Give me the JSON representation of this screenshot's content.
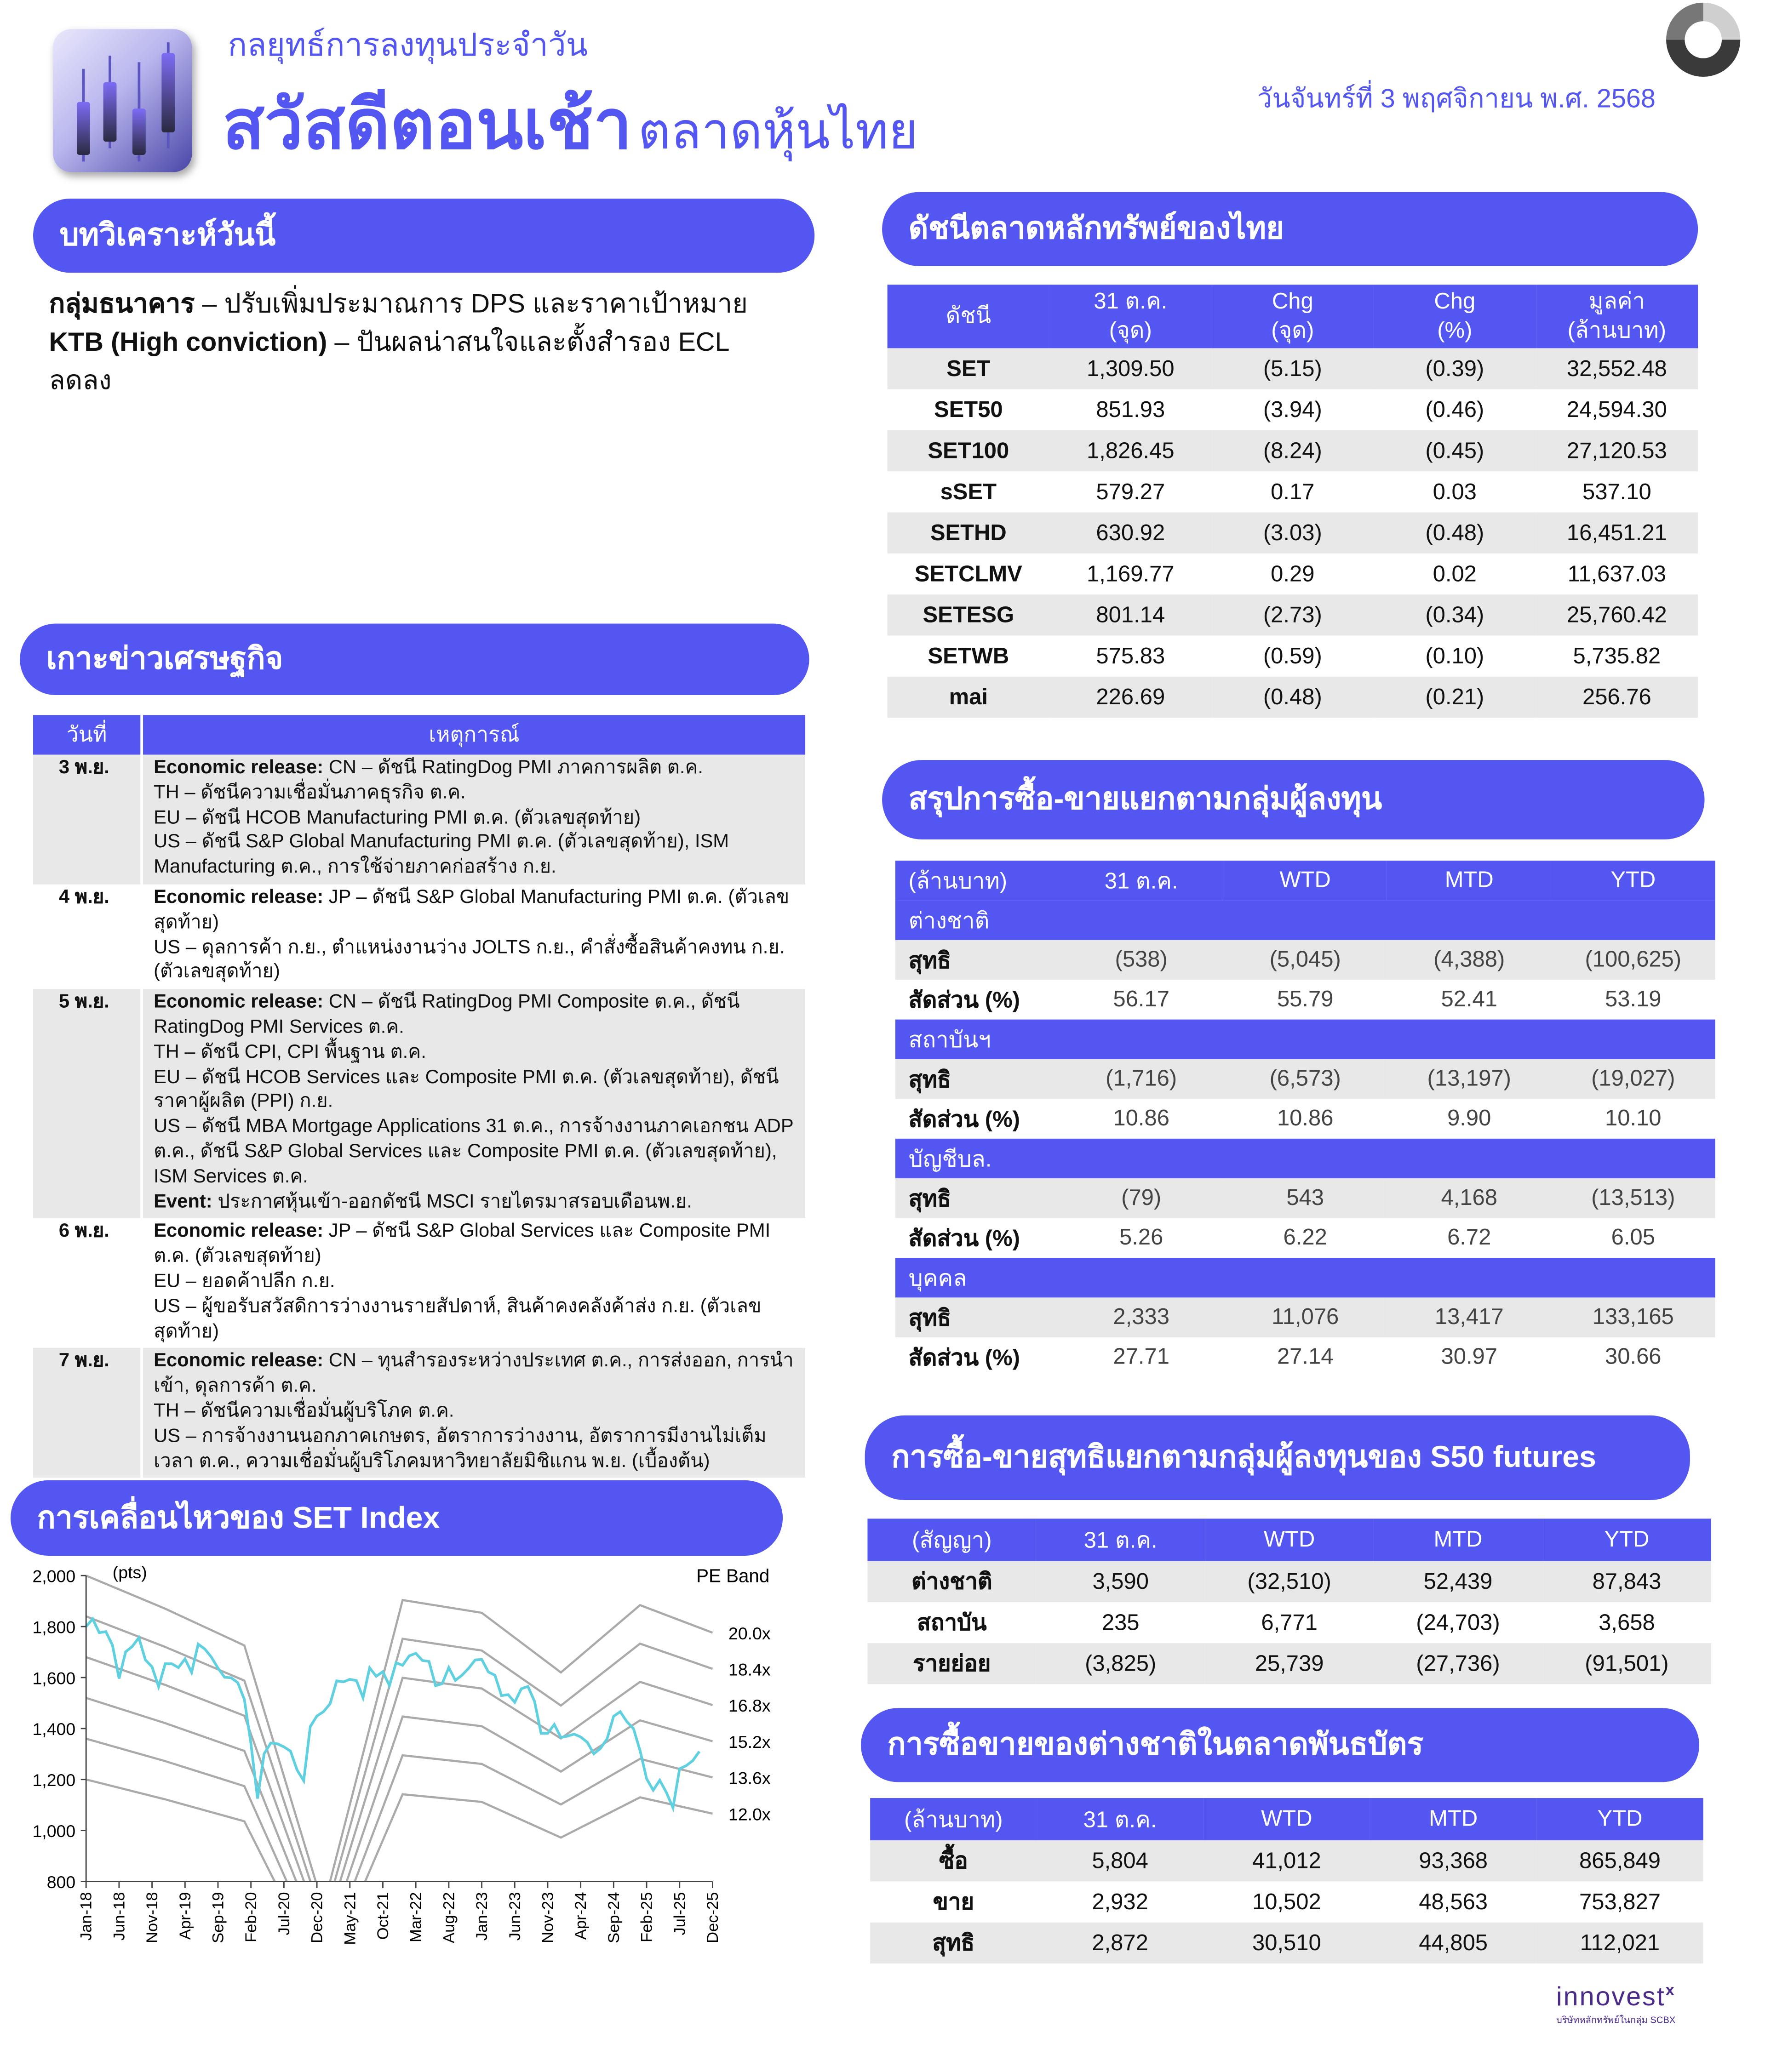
{
  "header": {
    "subtitle": "กลยุทธ์การลงทุนประจำวัน",
    "title_main": "สวัสดีตอนเช้า",
    "title_sub": "ตลาดหุ้นไทย",
    "date": "วันจันทร์ที่ 3 พฤศจิกายน พ.ศ. 2568"
  },
  "colors": {
    "accent": "#5356f0",
    "row_grey": "#e8e8e8",
    "set_line": "#5fd0e0",
    "pe_band": "#aaaaaa"
  },
  "analysis": {
    "heading": "บทวิเคราะห์วันนี้",
    "items": [
      {
        "label": "กลุ่มธนาคาร",
        "text": " – ปรับเพิ่มประมาณการ DPS และราคาเป้าหมาย"
      },
      {
        "label": "KTB (High conviction)",
        "text": " – ปันผลน่าสนใจและตั้งสำรอง ECL ลดลง"
      }
    ]
  },
  "economic": {
    "heading": "เกาะข่าวเศรษฐกิจ",
    "columns": [
      "วันที่",
      "เหตุการณ์"
    ],
    "rows": [
      {
        "date": "3 พ.ย.",
        "lines": [
          {
            "label": "Economic release:",
            "text": " CN – ดัชนี RatingDog PMI ภาคการผลิต ต.ค."
          },
          {
            "text": "TH – ดัชนีความเชื่อมั่นภาคธุรกิจ ต.ค."
          },
          {
            "text": "EU – ดัชนี HCOB Manufacturing PMI ต.ค. (ตัวเลขสุดท้าย)"
          },
          {
            "text": "US – ดัชนี S&P Global Manufacturing PMI ต.ค. (ตัวเลขสุดท้าย), ISM Manufacturing ต.ค., การใช้จ่ายภาคก่อสร้าง ก.ย."
          }
        ]
      },
      {
        "date": "4 พ.ย.",
        "lines": [
          {
            "label": "Economic release:",
            "text": " JP – ดัชนี S&P Global Manufacturing PMI ต.ค. (ตัวเลขสุดท้าย)"
          },
          {
            "text": "US – ดุลการค้า ก.ย., ตำแหน่งงานว่าง JOLTS ก.ย., คำสั่งซื้อสินค้าคงทน ก.ย. (ตัวเลขสุดท้าย)"
          }
        ]
      },
      {
        "date": "5 พ.ย.",
        "lines": [
          {
            "label": "Economic release:",
            "text": " CN – ดัชนี RatingDog PMI Composite ต.ค., ดัชนี RatingDog PMI Services ต.ค."
          },
          {
            "text": "TH – ดัชนี CPI, CPI พื้นฐาน ต.ค."
          },
          {
            "text": "EU – ดัชนี HCOB Services และ Composite PMI ต.ค. (ตัวเลขสุดท้าย), ดัชนีราคาผู้ผลิต (PPI) ก.ย."
          },
          {
            "text": "US – ดัชนี MBA Mortgage Applications 31 ต.ค., การจ้างงานภาคเอกชน ADP ต.ค., ดัชนี S&P Global Services และ Composite PMI ต.ค. (ตัวเลขสุดท้าย), ISM Services ต.ค."
          },
          {
            "label": "Event:",
            "text": " ประกาศหุ้นเข้า-ออกดัชนี MSCI รายไตรมาสรอบเดือนพ.ย."
          }
        ]
      },
      {
        "date": "6 พ.ย.",
        "lines": [
          {
            "label": "Economic release:",
            "text": " JP – ดัชนี S&P Global Services และ Composite PMI ต.ค. (ตัวเลขสุดท้าย)"
          },
          {
            "text": "EU – ยอดค้าปลีก ก.ย."
          },
          {
            "text": "US – ผู้ขอรับสวัสดิการว่างงานรายสัปดาห์, สินค้าคงคลังค้าส่ง ก.ย. (ตัวเลขสุดท้าย)"
          }
        ]
      },
      {
        "date": "7 พ.ย.",
        "lines": [
          {
            "label": "Economic release:",
            "text": " CN – ทุนสำรองระหว่างประเทศ ต.ค., การส่งออก, การนำเข้า, ดุลการค้า ต.ค."
          },
          {
            "text": "TH – ดัชนีความเชื่อมั่นผู้บริโภค ต.ค."
          },
          {
            "text": "US – การจ้างงานนอกภาคเกษตร, อัตราการว่างงาน, อัตราการมีงานไม่เต็มเวลา ต.ค., ความเชื่อมั่นผู้บริโภคมหาวิทยาลัยมิชิแกน พ.ย. (เบื้องต้น)"
          }
        ]
      }
    ]
  },
  "set_chart": {
    "heading": "การเคลื่อนไหวของ SET Index"
  },
  "chart_data": {
    "type": "line",
    "ylabel": "(pts)",
    "legend_title": "PE Band",
    "ylim": [
      800,
      2000
    ],
    "yticks": [
      800,
      1000,
      1200,
      1400,
      1600,
      1800,
      2000
    ],
    "ytick_labels": [
      "800",
      "1,000",
      "1,200",
      "1,400",
      "1,600",
      "1,800",
      "2,000"
    ],
    "xticks": [
      "Jan-18",
      "Jun-18",
      "Nov-18",
      "Apr-19",
      "Sep-19",
      "Feb-20",
      "Jul-20",
      "Dec-20",
      "May-21",
      "Oct-21",
      "Mar-22",
      "Aug-22",
      "Jan-23",
      "Jun-23",
      "Nov-23",
      "Apr-24",
      "Sep-24",
      "Feb-25",
      "Jul-25",
      "Dec-25"
    ],
    "grid": false,
    "legend_placement": "right (labels at line ends)",
    "set_index": {
      "start": "Jan-18",
      "frequency": "monthly",
      "values": [
        1800,
        1830,
        1776,
        1780,
        1727,
        1596,
        1701,
        1722,
        1756,
        1669,
        1642,
        1564,
        1654,
        1654,
        1639,
        1673,
        1620,
        1731,
        1712,
        1680,
        1637,
        1601,
        1599,
        1580,
        1514,
        1340,
        1125,
        1301,
        1343,
        1340,
        1328,
        1311,
        1237,
        1195,
        1408,
        1449,
        1466,
        1497,
        1587,
        1583,
        1593,
        1588,
        1521,
        1638,
        1605,
        1623,
        1568,
        1658,
        1648,
        1685,
        1695,
        1667,
        1663,
        1568,
        1576,
        1639,
        1589,
        1609,
        1636,
        1669,
        1671,
        1622,
        1609,
        1529,
        1533,
        1503,
        1556,
        1565,
        1507,
        1381,
        1381,
        1416,
        1365,
        1370,
        1378,
        1367,
        1346,
        1301,
        1322,
        1359,
        1448,
        1466,
        1427,
        1400,
        1314,
        1203,
        1158,
        1197,
        1149,
        1089,
        1242,
        1254,
        1274,
        1310
      ]
    },
    "pe_band_dates": [
      "Jan-18",
      "Jan-19",
      "Jan-20",
      "Jan-21",
      "Jan-22",
      "Jan-23",
      "Jan-24",
      "Jan-25",
      "Dec-25"
    ],
    "pe_bands": [
      {
        "name": "20.0x",
        "values": [
          2000,
          1870,
          1726,
          700,
          1904,
          1854,
          1620,
          1884,
          1776
        ]
      },
      {
        "name": "18.4x",
        "values": [
          1840,
          1720,
          1588,
          644,
          1752,
          1706,
          1490,
          1733,
          1634
        ]
      },
      {
        "name": "16.8x",
        "values": [
          1680,
          1571,
          1450,
          588,
          1599,
          1557,
          1361,
          1583,
          1492
        ]
      },
      {
        "name": "15.2x",
        "values": [
          1520,
          1421,
          1312,
          532,
          1447,
          1409,
          1231,
          1432,
          1350
        ]
      },
      {
        "name": "13.6x",
        "values": [
          1360,
          1272,
          1174,
          476,
          1295,
          1261,
          1102,
          1281,
          1208
        ]
      },
      {
        "name": "12.0x",
        "values": [
          1200,
          1122,
          1036,
          420,
          1142,
          1112,
          972,
          1130,
          1066
        ]
      }
    ]
  },
  "indices": {
    "heading": "ดัชนีตลาดหลักทรัพย์ของไทย",
    "columns": [
      [
        "ดัชนี"
      ],
      [
        "31 ต.ค.",
        "(จุด)"
      ],
      [
        "Chg",
        "(จุด)"
      ],
      [
        "Chg",
        "(%)"
      ],
      [
        "มูลค่า",
        "(ล้านบาท)"
      ]
    ],
    "rows": [
      [
        "SET",
        "1,309.50",
        "(5.15)",
        "(0.39)",
        "32,552.48"
      ],
      [
        "SET50",
        "851.93",
        "(3.94)",
        "(0.46)",
        "24,594.30"
      ],
      [
        "SET100",
        "1,826.45",
        "(8.24)",
        "(0.45)",
        "27,120.53"
      ],
      [
        "sSET",
        "579.27",
        "0.17",
        "0.03",
        "537.10"
      ],
      [
        "SETHD",
        "630.92",
        "(3.03)",
        "(0.48)",
        "16,451.21"
      ],
      [
        "SETCLMV",
        "1,169.77",
        "0.29",
        "0.02",
        "11,637.03"
      ],
      [
        "SETESG",
        "801.14",
        "(2.73)",
        "(0.34)",
        "25,760.42"
      ],
      [
        "SETWB",
        "575.83",
        "(0.59)",
        "(0.10)",
        "5,735.82"
      ],
      [
        "mai",
        "226.69",
        "(0.48)",
        "(0.21)",
        "256.76"
      ]
    ]
  },
  "investors": {
    "heading": "สรุปการซื้อ-ขายแยกตามกลุ่มผู้ลงทุน",
    "columns": [
      "(ล้านบาท)",
      "31 ต.ค.",
      "WTD",
      "MTD",
      "YTD"
    ],
    "groups": [
      {
        "name": "ต่างชาติ",
        "rows": [
          [
            "สุทธิ",
            "(538)",
            "(5,045)",
            "(4,388)",
            "(100,625)"
          ],
          [
            "สัดส่วน (%)",
            "56.17",
            "55.79",
            "52.41",
            "53.19"
          ]
        ]
      },
      {
        "name": "สถาบันฯ",
        "rows": [
          [
            "สุทธิ",
            "(1,716)",
            "(6,573)",
            "(13,197)",
            "(19,027)"
          ],
          [
            "สัดส่วน (%)",
            "10.86",
            "10.86",
            "9.90",
            "10.10"
          ]
        ]
      },
      {
        "name": "บัญชีบล.",
        "rows": [
          [
            "สุทธิ",
            "(79)",
            "543",
            "4,168",
            "(13,513)"
          ],
          [
            "สัดส่วน (%)",
            "5.26",
            "6.22",
            "6.72",
            "6.05"
          ]
        ]
      },
      {
        "name": "บุคคล",
        "rows": [
          [
            "สุทธิ",
            "2,333",
            "11,076",
            "13,417",
            "133,165"
          ],
          [
            "สัดส่วน (%)",
            "27.71",
            "27.14",
            "30.97",
            "30.66"
          ]
        ]
      }
    ]
  },
  "s50": {
    "heading": "การซื้อ-ขายสุทธิแยกตามกลุ่มผู้ลงทุนของ S50 futures",
    "columns": [
      "(สัญญา)",
      "31 ต.ค.",
      "WTD",
      "MTD",
      "YTD"
    ],
    "rows": [
      [
        "ต่างชาติ",
        "3,590",
        "(32,510)",
        "52,439",
        "87,843"
      ],
      [
        "สถาบัน",
        "235",
        "6,771",
        "(24,703)",
        "3,658"
      ],
      [
        "รายย่อย",
        "(3,825)",
        "25,739",
        "(27,736)",
        "(91,501)"
      ]
    ]
  },
  "bonds": {
    "heading": "การซื้อขายของต่างชาติในตลาดพันธบัตร",
    "columns": [
      "(ล้านบาท)",
      "31 ต.ค.",
      "WTD",
      "MTD",
      "YTD"
    ],
    "rows": [
      [
        "ซื้อ",
        "5,804",
        "41,012",
        "93,368",
        "865,849"
      ],
      [
        "ขาย",
        "2,932",
        "10,502",
        "48,563",
        "753,827"
      ],
      [
        "สุทธิ",
        "2,872",
        "30,510",
        "44,805",
        "112,021"
      ]
    ]
  },
  "footer": {
    "logo_text": "innovest",
    "logo_superscript": "x",
    "logo_tagline": "บริษัทหลักทรัพย์ในกลุ่ม SCBX"
  }
}
